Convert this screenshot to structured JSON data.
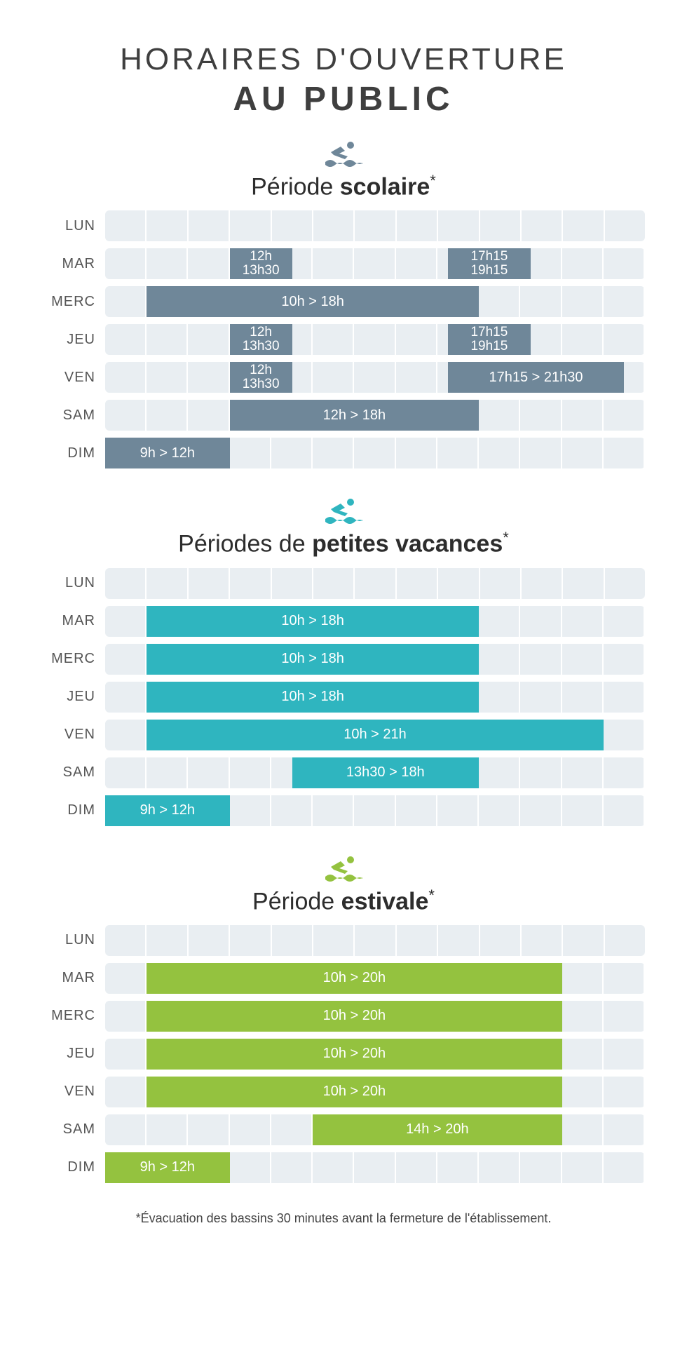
{
  "title_line1": "HORAIRES D'OUVERTURE",
  "title_line2": "AU PUBLIC",
  "footnote": "*Évacuation des bassins 30 minutes avant la fermeture de l'établissement.",
  "timeline": {
    "start": 9,
    "end": 22,
    "cols": 13
  },
  "track_bg": "#e9eef2",
  "tick_color": "#ffffff",
  "days": [
    "LUN",
    "MAR",
    "MERC",
    "JEU",
    "VEN",
    "SAM",
    "DIM"
  ],
  "sections": [
    {
      "id": "scolaire",
      "title_light": "Période ",
      "title_bold": "scolaire",
      "asterisk": "*",
      "color": "#6f8799",
      "icon_color": "#6f8799",
      "rows": [
        {
          "day": "LUN",
          "slots": []
        },
        {
          "day": "MAR",
          "slots": [
            {
              "start": 12,
              "end": 13.5,
              "label_lines": [
                "12h",
                "13h30"
              ]
            },
            {
              "start": 17.25,
              "end": 19.25,
              "label_lines": [
                "17h15",
                "19h15"
              ]
            }
          ]
        },
        {
          "day": "MERC",
          "slots": [
            {
              "start": 10,
              "end": 18,
              "label": "10h > 18h"
            }
          ]
        },
        {
          "day": "JEU",
          "slots": [
            {
              "start": 12,
              "end": 13.5,
              "label_lines": [
                "12h",
                "13h30"
              ]
            },
            {
              "start": 17.25,
              "end": 19.25,
              "label_lines": [
                "17h15",
                "19h15"
              ]
            }
          ]
        },
        {
          "day": "VEN",
          "slots": [
            {
              "start": 12,
              "end": 13.5,
              "label_lines": [
                "12h",
                "13h30"
              ]
            },
            {
              "start": 17.25,
              "end": 21.5,
              "label": "17h15 > 21h30"
            }
          ]
        },
        {
          "day": "SAM",
          "slots": [
            {
              "start": 12,
              "end": 18,
              "label": "12h > 18h"
            }
          ]
        },
        {
          "day": "DIM",
          "slots": [
            {
              "start": 9,
              "end": 12,
              "label": "9h > 12h"
            }
          ]
        }
      ]
    },
    {
      "id": "petites-vacances",
      "title_light": "Périodes de ",
      "title_bold": "petites vacances",
      "asterisk": "*",
      "color": "#2fb5bf",
      "icon_color": "#2fb5bf",
      "rows": [
        {
          "day": "LUN",
          "slots": []
        },
        {
          "day": "MAR",
          "slots": [
            {
              "start": 10,
              "end": 18,
              "label": "10h > 18h"
            }
          ]
        },
        {
          "day": "MERC",
          "slots": [
            {
              "start": 10,
              "end": 18,
              "label": "10h > 18h"
            }
          ]
        },
        {
          "day": "JEU",
          "slots": [
            {
              "start": 10,
              "end": 18,
              "label": "10h > 18h"
            }
          ]
        },
        {
          "day": "VEN",
          "slots": [
            {
              "start": 10,
              "end": 21,
              "label": "10h > 21h"
            }
          ]
        },
        {
          "day": "SAM",
          "slots": [
            {
              "start": 13.5,
              "end": 18,
              "label": "13h30 > 18h"
            }
          ]
        },
        {
          "day": "DIM",
          "slots": [
            {
              "start": 9,
              "end": 12,
              "label": "9h > 12h"
            }
          ]
        }
      ]
    },
    {
      "id": "estivale",
      "title_light": "Période ",
      "title_bold": "estivale",
      "asterisk": "*",
      "color": "#94c23f",
      "icon_color": "#94c23f",
      "rows": [
        {
          "day": "LUN",
          "slots": []
        },
        {
          "day": "MAR",
          "slots": [
            {
              "start": 10,
              "end": 20,
              "label": "10h > 20h"
            }
          ]
        },
        {
          "day": "MERC",
          "slots": [
            {
              "start": 10,
              "end": 20,
              "label": "10h > 20h"
            }
          ]
        },
        {
          "day": "JEU",
          "slots": [
            {
              "start": 10,
              "end": 20,
              "label": "10h > 20h"
            }
          ]
        },
        {
          "day": "VEN",
          "slots": [
            {
              "start": 10,
              "end": 20,
              "label": "10h > 20h"
            }
          ]
        },
        {
          "day": "SAM",
          "slots": [
            {
              "start": 14,
              "end": 20,
              "label": "14h > 20h"
            }
          ]
        },
        {
          "day": "DIM",
          "slots": [
            {
              "start": 9,
              "end": 12,
              "label": "9h > 12h"
            }
          ]
        }
      ]
    }
  ]
}
